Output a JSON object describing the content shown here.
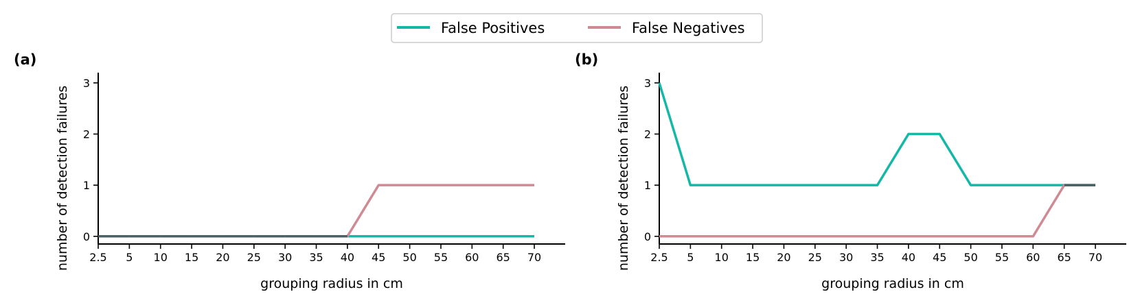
{
  "chart_data": [
    {
      "type": "line",
      "panel_label": "(a)",
      "categories": [
        "2.5",
        "5",
        "10",
        "15",
        "20",
        "25",
        "30",
        "35",
        "40",
        "45",
        "50",
        "55",
        "60",
        "65",
        "70"
      ],
      "series": [
        {
          "name": "False Positives",
          "color": "#14b8a6",
          "values": [
            0,
            0,
            0,
            0,
            0,
            0,
            0,
            0,
            0,
            0,
            0,
            0,
            0,
            0,
            0
          ]
        },
        {
          "name": "False Negatives",
          "color": "#cf8a93",
          "values": [
            0,
            0,
            0,
            0,
            0,
            0,
            0,
            0,
            0,
            1,
            1,
            1,
            1,
            1,
            1
          ]
        }
      ],
      "overlap_color": "#4a6266",
      "yticks": [
        0,
        1,
        2,
        3
      ],
      "ylim": [
        -0.15,
        3.2
      ],
      "xlabel": "grouping radius in cm",
      "ylabel": "number of detection failures"
    },
    {
      "type": "line",
      "panel_label": "(b)",
      "categories": [
        "2.5",
        "5",
        "10",
        "15",
        "20",
        "25",
        "30",
        "35",
        "40",
        "45",
        "50",
        "55",
        "60",
        "65",
        "70"
      ],
      "series": [
        {
          "name": "False Positives",
          "color": "#14b8a6",
          "values": [
            3,
            1,
            1,
            1,
            1,
            1,
            1,
            1,
            2,
            2,
            1,
            1,
            1,
            1,
            1
          ]
        },
        {
          "name": "False Negatives",
          "color": "#cf8a93",
          "values": [
            0,
            0,
            0,
            0,
            0,
            0,
            0,
            0,
            0,
            0,
            0,
            0,
            0,
            1,
            1
          ]
        }
      ],
      "overlap_color": "#4a6266",
      "yticks": [
        0,
        1,
        2,
        3
      ],
      "ylim": [
        -0.15,
        3.2
      ],
      "xlabel": "grouping radius in cm",
      "ylabel": "number of detection failures"
    }
  ],
  "legend": {
    "placement": "top-center",
    "items": [
      {
        "label": "False Positives",
        "color": "#14b8a6"
      },
      {
        "label": "False Negatives",
        "color": "#cf8a93"
      }
    ]
  }
}
